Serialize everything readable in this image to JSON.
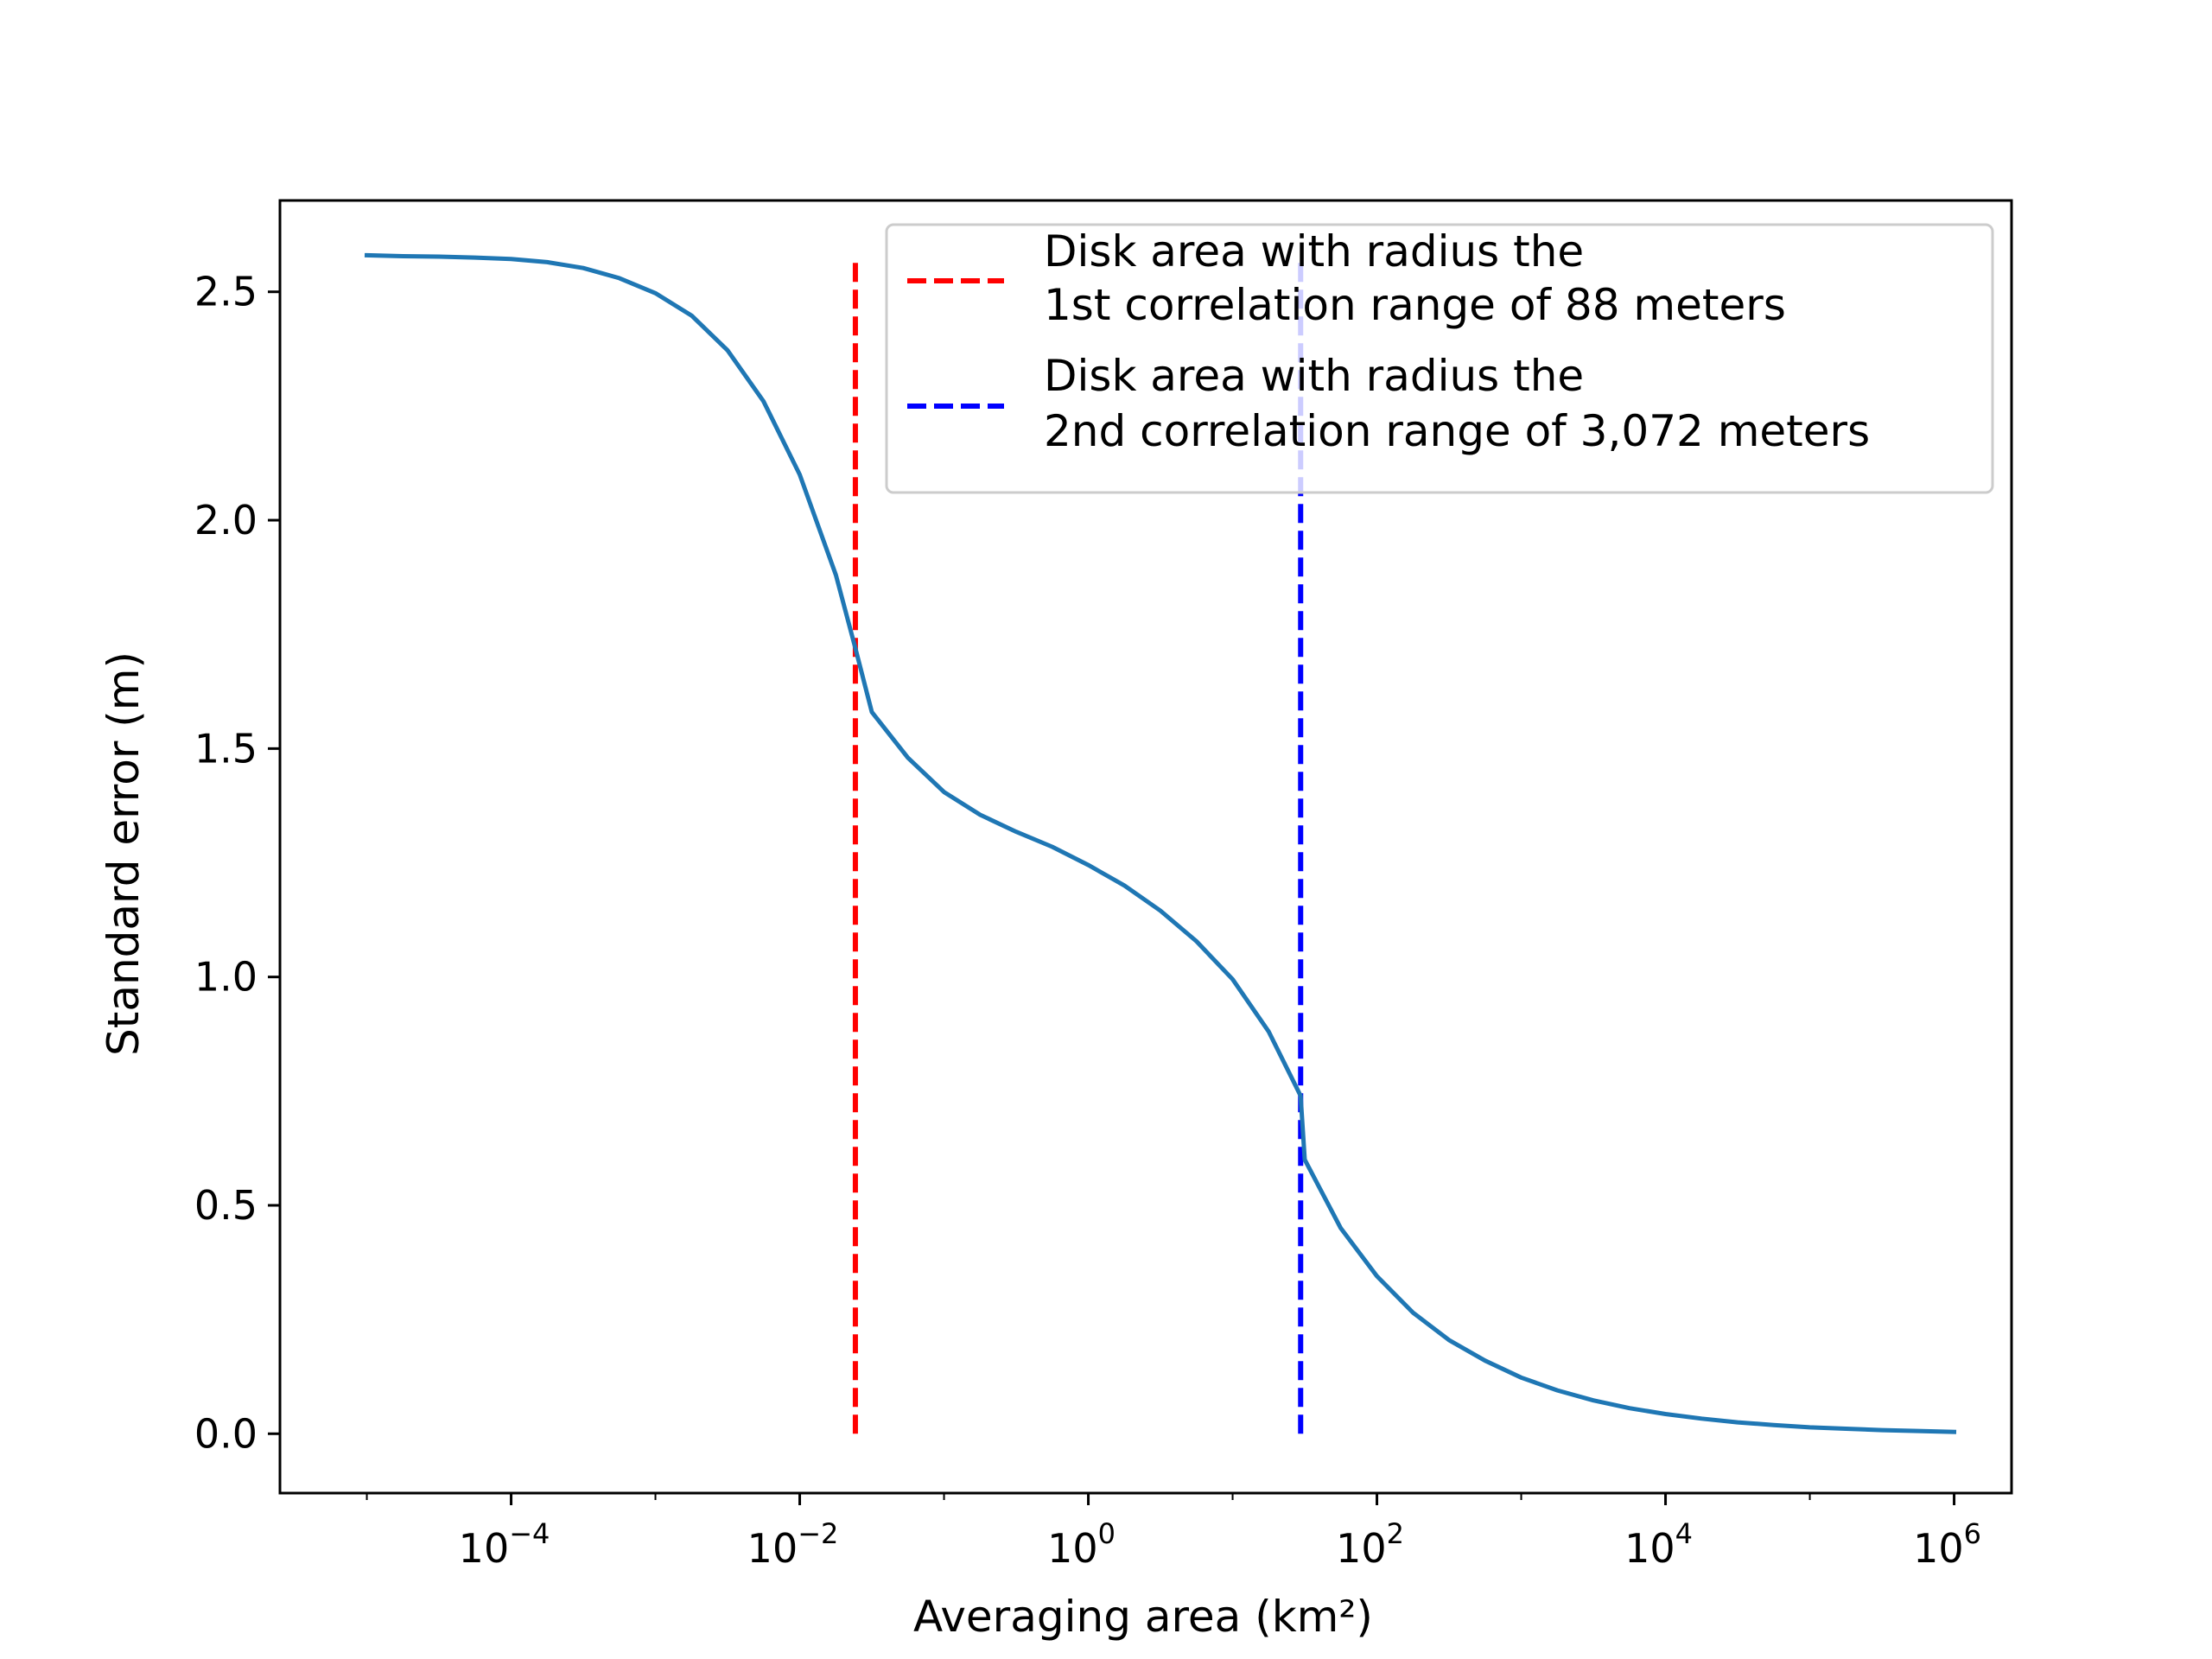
{
  "chart_data": {
    "type": "line",
    "xlabel": "Averaging area (km²)",
    "ylabel": "Standard error (m)",
    "xscale": "log",
    "xlim": [
      2.5e-06,
      2500000
    ],
    "ylim": [
      -0.13,
      2.7
    ],
    "grid": false,
    "legend_position": "top-right",
    "x_ticks": [
      {
        "value": 0.0001,
        "base": "10",
        "exp": "−4"
      },
      {
        "value": 0.01,
        "base": "10",
        "exp": "−2"
      },
      {
        "value": 1,
        "base": "10",
        "exp": "0"
      },
      {
        "value": 100,
        "base": "10",
        "exp": "2"
      },
      {
        "value": 10000,
        "base": "10",
        "exp": "4"
      },
      {
        "value": 1000000,
        "base": "10",
        "exp": "6"
      }
    ],
    "y_ticks": [
      {
        "value": 0.0,
        "label": "0.0"
      },
      {
        "value": 0.5,
        "label": "0.5"
      },
      {
        "value": 1.0,
        "label": "1.0"
      },
      {
        "value": 1.5,
        "label": "1.5"
      },
      {
        "value": 2.0,
        "label": "2.0"
      },
      {
        "value": 2.5,
        "label": "2.5"
      }
    ],
    "series": [
      {
        "color": "#1f77b4",
        "x": [
          1e-05,
          1.78e-05,
          3.16e-05,
          5.62e-05,
          0.0001,
          0.000178,
          0.000316,
          0.000562,
          0.001,
          0.00178,
          0.00316,
          0.00562,
          0.01,
          0.0178,
          0.0243,
          0.0316,
          0.0562,
          0.1,
          0.178,
          0.316,
          0.562,
          1.0,
          1.78,
          3.16,
          5.62,
          10,
          17.8,
          29.6,
          31.6,
          56.2,
          100,
          178,
          316,
          562,
          1000,
          1780,
          3160,
          5620,
          10000,
          17800,
          31600,
          56200,
          100000,
          178000,
          316000,
          562000,
          1000000
        ],
        "y": [
          2.58,
          2.578,
          2.577,
          2.575,
          2.572,
          2.565,
          2.552,
          2.53,
          2.497,
          2.448,
          2.372,
          2.26,
          2.1,
          1.88,
          1.72,
          1.58,
          1.48,
          1.405,
          1.355,
          1.318,
          1.285,
          1.245,
          1.2,
          1.145,
          1.078,
          0.995,
          0.88,
          0.74,
          0.6,
          0.45,
          0.345,
          0.265,
          0.205,
          0.16,
          0.123,
          0.095,
          0.073,
          0.056,
          0.043,
          0.033,
          0.025,
          0.019,
          0.014,
          0.011,
          0.008,
          0.006,
          0.004
        ]
      }
    ],
    "vlines": [
      {
        "x": 0.0243,
        "ymin": 0.0,
        "ymax": 2.58,
        "color": "#ff0000",
        "label": [
          "Disk area with radius the",
          "1st correlation range of 88 meters"
        ]
      },
      {
        "x": 29.6,
        "ymin": 0.0,
        "ymax": 2.58,
        "color": "#0000ff",
        "label": [
          "Disk area with radius the",
          "2nd correlation range of 3,072 meters"
        ]
      }
    ]
  }
}
